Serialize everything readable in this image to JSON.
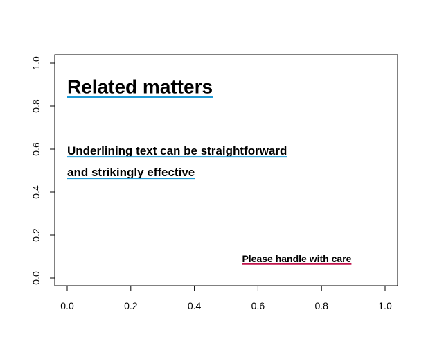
{
  "chart_data": {
    "type": "scatter",
    "xlim": [
      0,
      1
    ],
    "ylim": [
      0,
      1
    ],
    "x_ticks": [
      "0.0",
      "0.2",
      "0.4",
      "0.6",
      "0.8",
      "1.0"
    ],
    "y_ticks": [
      "0.0",
      "0.2",
      "0.4",
      "0.6",
      "0.8",
      "1.0"
    ],
    "grid": false,
    "annotations": [
      {
        "text": "Related matters",
        "x": 0.0,
        "y": 0.86,
        "size": "large",
        "underline_color": "#1f9ad6"
      },
      {
        "text": "Underlining text can be straightforward",
        "x": 0.0,
        "y": 0.575,
        "size": "medium",
        "underline_color": "#1f9ad6"
      },
      {
        "text": "and strikingly effective",
        "x": 0.0,
        "y": 0.475,
        "size": "medium",
        "underline_color": "#1f9ad6"
      },
      {
        "text": "Please handle with care",
        "x": 0.55,
        "y": 0.075,
        "size": "small",
        "underline_color": "#c0144b"
      }
    ]
  }
}
